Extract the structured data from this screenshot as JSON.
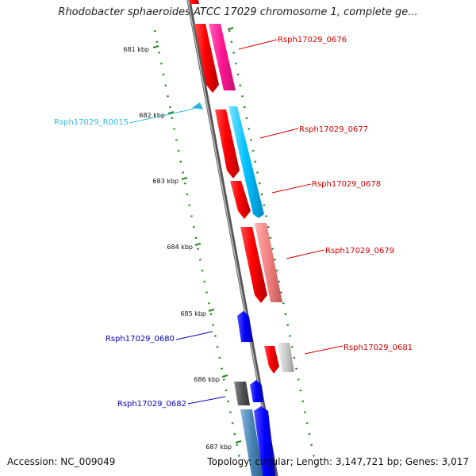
{
  "title": "Rhodobacter sphaeroides ATCC 17029 chromosome 1, complete ge...",
  "footer": {
    "accession": "Accession: NC_009049",
    "summary": "Topology: circular; Length: 3,147,721 bp; Genes: 3,017"
  },
  "scale_ticks": [
    "681 kbp",
    "682 kbp",
    "683 kbp",
    "684 kbp",
    "685 kbp",
    "686 kbp",
    "687 kbp"
  ],
  "genes": [
    {
      "id": "Rsph17029_0676",
      "color": "#d00000"
    },
    {
      "id": "Rsph17029_R0015",
      "color": "#33bbdd"
    },
    {
      "id": "Rsph17029_0677",
      "color": "#d00000"
    },
    {
      "id": "Rsph17029_0678",
      "color": "#d00000"
    },
    {
      "id": "Rsph17029_0679",
      "color": "#d00000"
    },
    {
      "id": "Rsph17029_0680",
      "color": "#0000bb"
    },
    {
      "id": "Rsph17029_0681",
      "color": "#d00000"
    },
    {
      "id": "Rsph17029_0682",
      "color": "#0000bb"
    }
  ]
}
